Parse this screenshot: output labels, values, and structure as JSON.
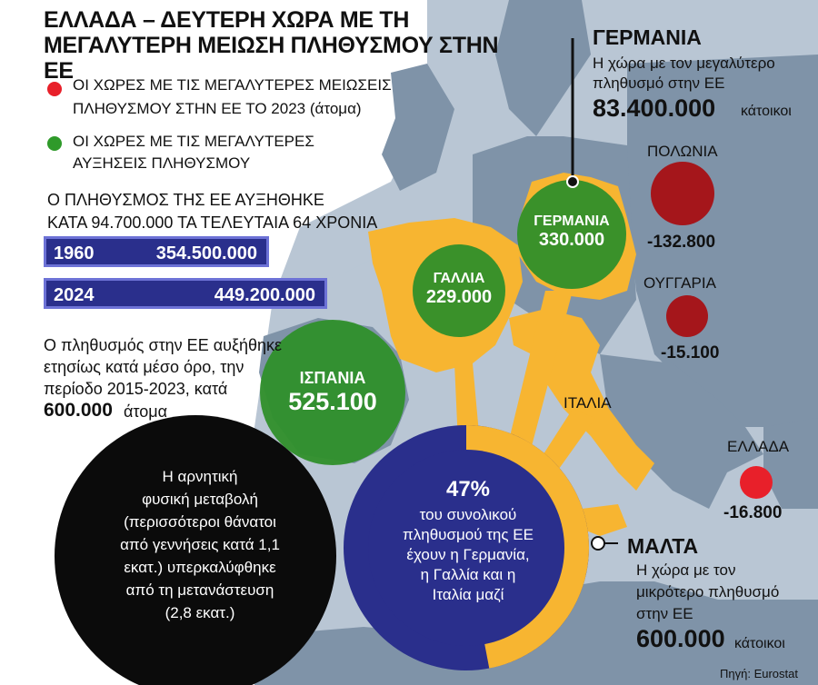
{
  "title": "ΕΛΛΑΔΑ – ΔΕΥΤΕΡΗ ΧΩΡΑ ΜΕ ΤΗ ΜΕΓΑΛΥΤΕΡΗ ΜΕΙΩΣΗ ΠΛΗΘΥΣΜΟΥ ΣΤΗΝ ΕΕ",
  "legend": {
    "red_line1": "ΟΙ ΧΩΡΕΣ ΜΕ ΤΙΣ ΜΕΓΑΛΥΤΕΡΕΣ ΜΕΙΩΣΕΙΣ",
    "red_line2": "ΠΛΗΘΥΣΜΟΥ ΣΤΗΝ ΕΕ ΤΟ 2023 (άτομα)",
    "green_line1": "ΟΙ ΧΩΡΕΣ ΜΕ ΤΙΣ ΜΕΓΑΛΥΤΕΡΕΣ",
    "green_line2": "ΑΥΞΗΣΕΙΣ ΠΛΗΘΥΣΜΟΥ",
    "red_color": "#e8202a",
    "green_color": "#2f9a2a"
  },
  "growth": {
    "line1": "Ο ΠΛΗΘΥΣΜΟΣ ΤΗΣ ΕΕ ΑΥΞΗΘΗΚΕ",
    "line2": "ΚΑΤΑ 94.700.000 ΤΑ ΤΕΛΕΥΤΑΙΑ 64 ΧΡΟΝΙΑ",
    "rows": [
      {
        "year": "1960",
        "value": "354.500.000"
      },
      {
        "year": "2024",
        "value": "449.200.000"
      }
    ]
  },
  "avg": {
    "line1": "Ο πληθυσμός στην ΕΕ αυξήθηκε",
    "line2": "ετησίως κατά μέσο όρο, την",
    "line3": "περίοδο 2015-2023, κατά",
    "number": "600.000",
    "unit": "άτομα"
  },
  "natural_change": {
    "lines": [
      "Η αρνητική",
      "φυσική μεταβολή",
      "(περισσότεροι θάνατοι",
      "από γεννήσεις κατά 1,1",
      "εκατ.) υπερκαλύφθηκε",
      "από τη μετανάστευση",
      "(2,8 εκατ.)"
    ]
  },
  "center": {
    "percent": "47%",
    "lines": [
      "του συνολικού",
      "πληθυσμού της ΕΕ",
      "έχουν η Γερμανία,",
      "η Γαλλία και η",
      "Ιταλία μαζί"
    ],
    "share": 0.47
  },
  "germany_note": {
    "name": "ΓΕΡΜΑΝΙΑ",
    "desc1": "Η χώρα με τον μεγαλύτερο",
    "desc2": "πληθυσμό στην ΕΕ",
    "number": "83.400.000",
    "unit": "κάτοικοι"
  },
  "malta_note": {
    "name": "ΜΑΛΤΑ",
    "desc1": "Η χώρα με τον",
    "desc2": "μικρότερο πληθυσμό",
    "desc3": "στην ΕΕ",
    "number": "600.000",
    "unit": "κάτοικοι"
  },
  "increases": [
    {
      "name": "ΓΕΡΜΑΝΙΑ",
      "value": "330.000"
    },
    {
      "name": "ΓΑΛΛΙΑ",
      "value": "229.000"
    },
    {
      "name": "ΙΣΠΑΝΙΑ",
      "value": "525.100"
    }
  ],
  "decreases": [
    {
      "name": "ΠΟΛΩΝΙΑ",
      "value": "-132.800"
    },
    {
      "name": "ΟΥΓΓΑΡΙΑ",
      "value": "-15.100"
    },
    {
      "name": "ΕΛΛΑΔΑ",
      "value": "-16.800"
    }
  ],
  "italy_label": "ΙΤΑΛΙΑ",
  "source": "Πηγή: Eurostat",
  "colors": {
    "sea": "#b9c6d4",
    "land": "#7f93a8",
    "highlight": "#f7b531",
    "navy": "#2a2f8c",
    "dark_red": "#a5161b"
  }
}
